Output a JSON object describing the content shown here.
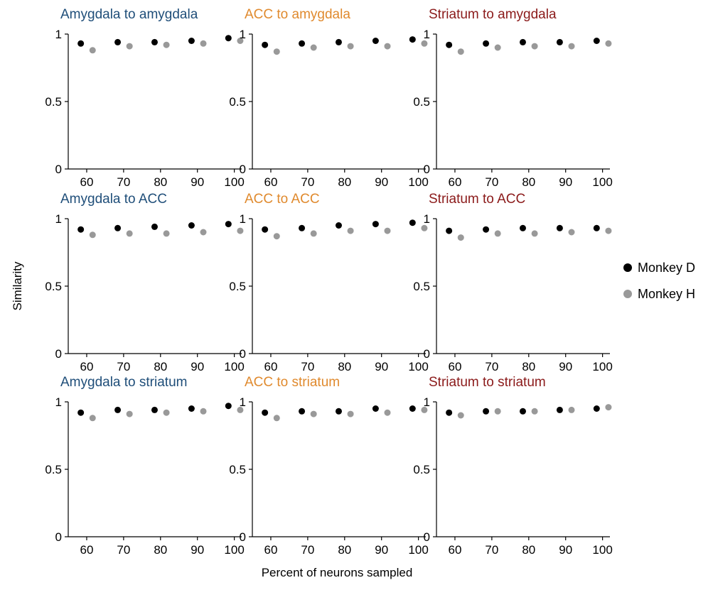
{
  "figure": {
    "ylabel": "Similarity",
    "xlabel": "Percent of neurons sampled",
    "x_ticks": [
      "60",
      "70",
      "80",
      "90",
      "100"
    ],
    "y_ticks": [
      "0",
      "0.5",
      "1"
    ],
    "legend": [
      {
        "label": "Monkey D",
        "color": "#000000"
      },
      {
        "label": "Monkey H",
        "color": "#999999"
      }
    ],
    "source_colors": {
      "Amygdala": "#1f4e79",
      "ACC": "#e08a2e",
      "Striatum": "#8b1a1a"
    }
  },
  "chart_data": [
    {
      "type": "scatter",
      "title": "Amygdala to amygdala",
      "title_color": "#1f4e79",
      "x": [
        60,
        70,
        80,
        90,
        100
      ],
      "ylim": [
        0,
        1
      ],
      "series": [
        {
          "name": "Monkey D",
          "color": "#000000",
          "values": [
            0.93,
            0.94,
            0.94,
            0.95,
            0.97
          ]
        },
        {
          "name": "Monkey H",
          "color": "#999999",
          "values": [
            0.88,
            0.91,
            0.92,
            0.93,
            0.95
          ]
        }
      ]
    },
    {
      "type": "scatter",
      "title": "ACC to amygdala",
      "title_color": "#e08a2e",
      "x": [
        60,
        70,
        80,
        90,
        100
      ],
      "ylim": [
        0,
        1
      ],
      "series": [
        {
          "name": "Monkey D",
          "color": "#000000",
          "values": [
            0.92,
            0.93,
            0.94,
            0.95,
            0.96
          ]
        },
        {
          "name": "Monkey H",
          "color": "#999999",
          "values": [
            0.87,
            0.9,
            0.91,
            0.91,
            0.93
          ]
        }
      ]
    },
    {
      "type": "scatter",
      "title": "Striatum to amygdala",
      "title_color": "#8b1a1a",
      "x": [
        60,
        70,
        80,
        90,
        100
      ],
      "ylim": [
        0,
        1
      ],
      "series": [
        {
          "name": "Monkey D",
          "color": "#000000",
          "values": [
            0.92,
            0.93,
            0.94,
            0.94,
            0.95
          ]
        },
        {
          "name": "Monkey H",
          "color": "#999999",
          "values": [
            0.87,
            0.9,
            0.91,
            0.91,
            0.93
          ]
        }
      ]
    },
    {
      "type": "scatter",
      "title": "Amygdala to ACC",
      "title_color": "#1f4e79",
      "x": [
        60,
        70,
        80,
        90,
        100
      ],
      "ylim": [
        0,
        1
      ],
      "series": [
        {
          "name": "Monkey D",
          "color": "#000000",
          "values": [
            0.92,
            0.93,
            0.94,
            0.95,
            0.96
          ]
        },
        {
          "name": "Monkey H",
          "color": "#999999",
          "values": [
            0.88,
            0.89,
            0.89,
            0.9,
            0.91
          ]
        }
      ]
    },
    {
      "type": "scatter",
      "title": "ACC to ACC",
      "title_color": "#e08a2e",
      "x": [
        60,
        70,
        80,
        90,
        100
      ],
      "ylim": [
        0,
        1
      ],
      "series": [
        {
          "name": "Monkey D",
          "color": "#000000",
          "values": [
            0.92,
            0.93,
            0.95,
            0.96,
            0.97
          ]
        },
        {
          "name": "Monkey H",
          "color": "#999999",
          "values": [
            0.87,
            0.89,
            0.91,
            0.91,
            0.93
          ]
        }
      ]
    },
    {
      "type": "scatter",
      "title": "Striatum to ACC",
      "title_color": "#8b1a1a",
      "x": [
        60,
        70,
        80,
        90,
        100
      ],
      "ylim": [
        0,
        1
      ],
      "series": [
        {
          "name": "Monkey D",
          "color": "#000000",
          "values": [
            0.91,
            0.92,
            0.93,
            0.93,
            0.93
          ]
        },
        {
          "name": "Monkey H",
          "color": "#999999",
          "values": [
            0.86,
            0.89,
            0.89,
            0.9,
            0.91
          ]
        }
      ]
    },
    {
      "type": "scatter",
      "title": "Amygdala to striatum",
      "title_color": "#1f4e79",
      "x": [
        60,
        70,
        80,
        90,
        100
      ],
      "ylim": [
        0,
        1
      ],
      "series": [
        {
          "name": "Monkey D",
          "color": "#000000",
          "values": [
            0.92,
            0.94,
            0.94,
            0.95,
            0.97
          ]
        },
        {
          "name": "Monkey H",
          "color": "#999999",
          "values": [
            0.88,
            0.91,
            0.92,
            0.93,
            0.94
          ]
        }
      ]
    },
    {
      "type": "scatter",
      "title": "ACC to striatum",
      "title_color": "#e08a2e",
      "x": [
        60,
        70,
        80,
        90,
        100
      ],
      "ylim": [
        0,
        1
      ],
      "series": [
        {
          "name": "Monkey D",
          "color": "#000000",
          "values": [
            0.92,
            0.93,
            0.93,
            0.95,
            0.95
          ]
        },
        {
          "name": "Monkey H",
          "color": "#999999",
          "values": [
            0.88,
            0.91,
            0.91,
            0.92,
            0.94
          ]
        }
      ]
    },
    {
      "type": "scatter",
      "title": "Striatum to striatum",
      "title_color": "#8b1a1a",
      "x": [
        60,
        70,
        80,
        90,
        100
      ],
      "ylim": [
        0,
        1
      ],
      "series": [
        {
          "name": "Monkey D",
          "color": "#000000",
          "values": [
            0.92,
            0.93,
            0.93,
            0.94,
            0.95
          ]
        },
        {
          "name": "Monkey H",
          "color": "#999999",
          "values": [
            0.9,
            0.93,
            0.93,
            0.94,
            0.96
          ]
        }
      ]
    }
  ]
}
